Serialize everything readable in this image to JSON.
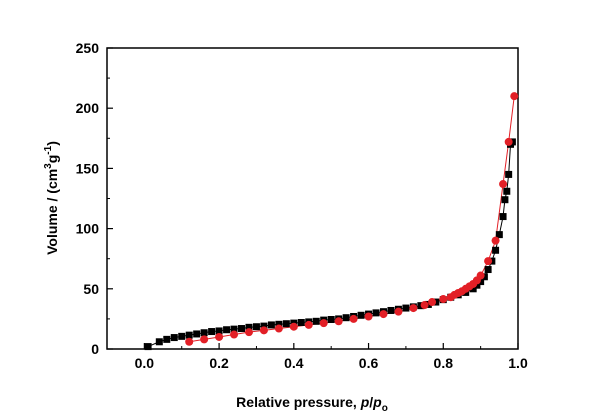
{
  "chart_data": {
    "type": "scatter",
    "title": "",
    "xlabel": {
      "text": "Relative pressure, ",
      "italic_p": "p",
      "slash": "/",
      "italic_p2": "p",
      "subscript": "o"
    },
    "ylabel": {
      "text": "Volume / (cm",
      "sup3": "3",
      "g": "g",
      "supneg1": "-1",
      "close": ")"
    },
    "xlim": [
      -0.1,
      1.0
    ],
    "ylim": [
      0,
      250
    ],
    "x_ticks": [
      0.0,
      0.2,
      0.4,
      0.6,
      0.8,
      1.0
    ],
    "x_tick_labels": [
      "0.0",
      "0.2",
      "0.4",
      "0.6",
      "0.8",
      "1.0"
    ],
    "y_ticks": [
      0,
      50,
      100,
      150,
      200,
      250
    ],
    "y_tick_labels": [
      "0",
      "50",
      "100",
      "150",
      "200",
      "250"
    ],
    "grid": false,
    "legend": "none",
    "series": [
      {
        "marker": "square",
        "color": "#000000",
        "line": true,
        "x": [
          0.01,
          0.04,
          0.06,
          0.08,
          0.1,
          0.12,
          0.14,
          0.16,
          0.18,
          0.2,
          0.22,
          0.24,
          0.26,
          0.28,
          0.3,
          0.32,
          0.34,
          0.36,
          0.38,
          0.4,
          0.42,
          0.44,
          0.46,
          0.48,
          0.5,
          0.52,
          0.54,
          0.56,
          0.58,
          0.6,
          0.62,
          0.64,
          0.66,
          0.68,
          0.7,
          0.72,
          0.74,
          0.76,
          0.78,
          0.8,
          0.82,
          0.84,
          0.86,
          0.88,
          0.89,
          0.9,
          0.91,
          0.92,
          0.93,
          0.94,
          0.95,
          0.96,
          0.965,
          0.97,
          0.975,
          0.98,
          0.985
        ],
        "y": [
          2,
          6,
          8,
          9.5,
          10.5,
          11.5,
          12.5,
          13.5,
          14.5,
          15,
          16,
          16.5,
          17,
          18,
          18.5,
          19,
          20,
          20.5,
          21,
          21.5,
          22,
          22.5,
          23,
          24,
          24.5,
          25,
          26,
          27,
          28,
          29,
          30,
          31,
          32,
          33,
          34,
          35,
          36,
          37,
          39,
          41,
          43,
          45,
          47,
          50,
          53,
          56,
          60,
          66,
          73,
          82,
          95,
          110,
          124,
          131,
          145,
          170,
          172
        ]
      },
      {
        "marker": "circle",
        "color": "#e21f26",
        "line": true,
        "x": [
          0.12,
          0.16,
          0.2,
          0.24,
          0.28,
          0.32,
          0.36,
          0.4,
          0.44,
          0.48,
          0.52,
          0.56,
          0.6,
          0.64,
          0.68,
          0.72,
          0.75,
          0.77,
          0.8,
          0.82,
          0.83,
          0.84,
          0.85,
          0.86,
          0.87,
          0.88,
          0.89,
          0.9,
          0.92,
          0.94,
          0.96,
          0.975,
          0.99
        ],
        "y": [
          6,
          8,
          10,
          12,
          14,
          15.5,
          17,
          18.5,
          20,
          21.5,
          23,
          25,
          27,
          29,
          31,
          34,
          36.5,
          39,
          41.5,
          43,
          45,
          46.5,
          48,
          50,
          52,
          54,
          57,
          61,
          73,
          90,
          137,
          172,
          210
        ]
      }
    ]
  }
}
